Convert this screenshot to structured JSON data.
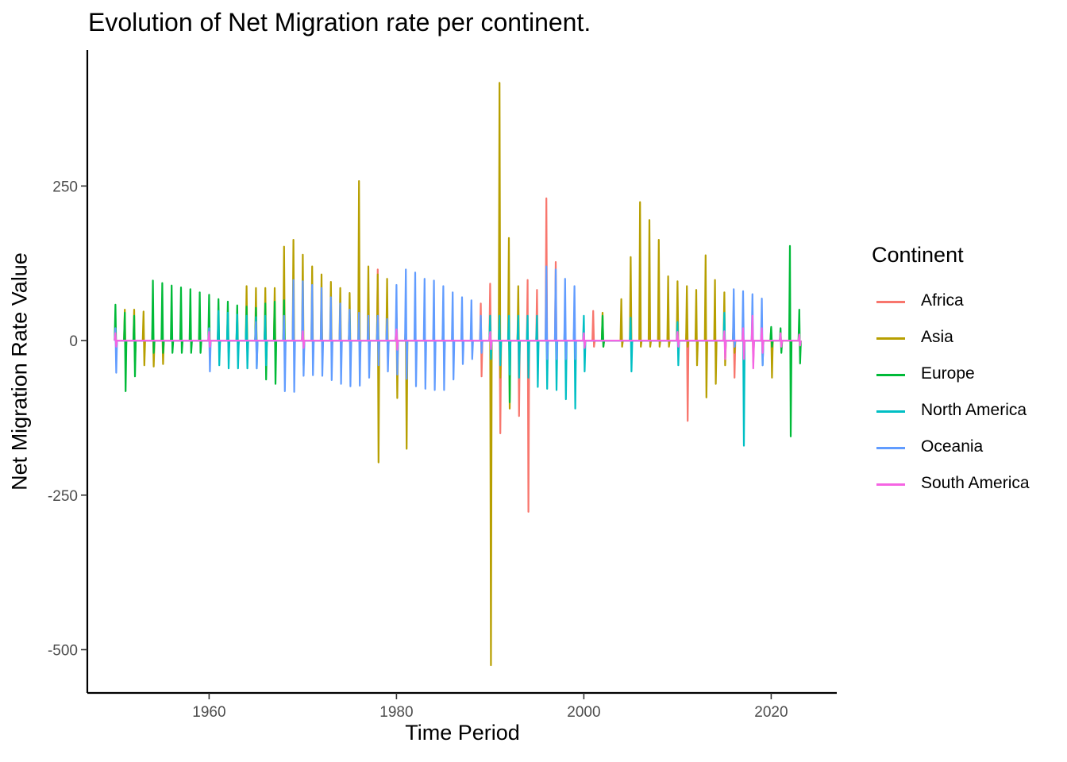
{
  "chart_data": {
    "type": "line",
    "title": "Evolution of Net Migration rate per continent.",
    "xlabel": "Time Period",
    "ylabel": "Net Migration Rate Value",
    "xlim": [
      1947,
      2027
    ],
    "ylim": [
      -570,
      470
    ],
    "x_ticks": [
      1960,
      1980,
      2000,
      2020
    ],
    "y_ticks": [
      -500,
      -250,
      0,
      250
    ],
    "grid": false,
    "legend_position": "right",
    "legend_title": "Continent",
    "series": [
      {
        "name": "Africa",
        "color": "#F8766D",
        "spikes": [
          [
            1978,
            115,
            -20
          ],
          [
            1980,
            50,
            -10
          ],
          [
            1989,
            60,
            -58
          ],
          [
            1990,
            92,
            -20
          ],
          [
            1991,
            30,
            -150
          ],
          [
            1993,
            40,
            -122
          ],
          [
            1994,
            98,
            -277
          ],
          [
            1995,
            82,
            -30
          ],
          [
            1996,
            230,
            -20
          ],
          [
            1997,
            127,
            -15
          ],
          [
            2001,
            48,
            -10
          ],
          [
            2011,
            30,
            -130
          ],
          [
            2016,
            20,
            -60
          ],
          [
            2018,
            30,
            -35
          ]
        ]
      },
      {
        "name": "Asia",
        "color": "#B79F00",
        "spikes": [
          [
            1951,
            50,
            -28
          ],
          [
            1952,
            50,
            -35
          ],
          [
            1953,
            47,
            -40
          ],
          [
            1954,
            30,
            -42
          ],
          [
            1955,
            20,
            -38
          ],
          [
            1964,
            88,
            -20
          ],
          [
            1965,
            85,
            -20
          ],
          [
            1966,
            85,
            -20
          ],
          [
            1967,
            85,
            -20
          ],
          [
            1968,
            152,
            -18
          ],
          [
            1969,
            163,
            -20
          ],
          [
            1970,
            139,
            -20
          ],
          [
            1971,
            120,
            -20
          ],
          [
            1972,
            107,
            -20
          ],
          [
            1973,
            95,
            -20
          ],
          [
            1974,
            85,
            -20
          ],
          [
            1975,
            77,
            -20
          ],
          [
            1976,
            258,
            -20
          ],
          [
            1977,
            120,
            -20
          ],
          [
            1978,
            107,
            -197
          ],
          [
            1979,
            100,
            -30
          ],
          [
            1980,
            40,
            -93
          ],
          [
            1981,
            30,
            -175
          ],
          [
            1990,
            40,
            -525
          ],
          [
            1991,
            417,
            -60
          ],
          [
            1992,
            166,
            -110
          ],
          [
            1993,
            88,
            -30
          ],
          [
            2002,
            45,
            -10
          ],
          [
            2004,
            67,
            -10
          ],
          [
            2005,
            135,
            -10
          ],
          [
            2006,
            224,
            -10
          ],
          [
            2007,
            195,
            -10
          ],
          [
            2008,
            163,
            -10
          ],
          [
            2009,
            104,
            -10
          ],
          [
            2010,
            96,
            -10
          ],
          [
            2011,
            88,
            -10
          ],
          [
            2012,
            82,
            -40
          ],
          [
            2013,
            138,
            -92
          ],
          [
            2014,
            98,
            -70
          ],
          [
            2015,
            78,
            -40
          ],
          [
            2016,
            56,
            -20
          ],
          [
            2020,
            20,
            -60
          ]
        ]
      },
      {
        "name": "Europe",
        "color": "#00BA38",
        "spikes": [
          [
            1950,
            58,
            -20
          ],
          [
            1951,
            45,
            -82
          ],
          [
            1952,
            40,
            -58
          ],
          [
            1954,
            97,
            -20
          ],
          [
            1955,
            93,
            -20
          ],
          [
            1956,
            89,
            -20
          ],
          [
            1957,
            86,
            -20
          ],
          [
            1958,
            83,
            -20
          ],
          [
            1959,
            78,
            -20
          ],
          [
            1960,
            74,
            -20
          ],
          [
            1961,
            67,
            -20
          ],
          [
            1962,
            63,
            -20
          ],
          [
            1963,
            57,
            -20
          ],
          [
            1964,
            55,
            -20
          ],
          [
            1965,
            53,
            -20
          ],
          [
            1966,
            60,
            -63
          ],
          [
            1967,
            63,
            -70
          ],
          [
            1968,
            65,
            -10
          ],
          [
            1978,
            40,
            -10
          ],
          [
            1992,
            30,
            -100
          ],
          [
            2002,
            40,
            -10
          ],
          [
            2020,
            22,
            -10
          ],
          [
            2021,
            20,
            -20
          ],
          [
            2022,
            153,
            -155
          ],
          [
            2023,
            50,
            -37
          ]
        ]
      },
      {
        "name": "North America",
        "color": "#00BFC4",
        "spikes": [
          [
            1961,
            48,
            -40
          ],
          [
            1962,
            45,
            -45
          ],
          [
            1963,
            42,
            -45
          ],
          [
            1964,
            40,
            -45
          ],
          [
            1965,
            38,
            -45
          ],
          [
            1966,
            40,
            -40
          ],
          [
            1970,
            40,
            -40
          ],
          [
            1975,
            45,
            -35
          ],
          [
            1980,
            40,
            -30
          ],
          [
            1985,
            40,
            -30
          ],
          [
            1990,
            40,
            -30
          ],
          [
            1991,
            40,
            -40
          ],
          [
            1992,
            40,
            -55
          ],
          [
            1993,
            40,
            -60
          ],
          [
            1994,
            40,
            -60
          ],
          [
            1995,
            40,
            -75
          ],
          [
            1996,
            40,
            -78
          ],
          [
            1997,
            40,
            -80
          ],
          [
            1998,
            40,
            -95
          ],
          [
            1999,
            40,
            -110
          ],
          [
            2000,
            40,
            -50
          ],
          [
            2005,
            37,
            -50
          ],
          [
            2010,
            30,
            -40
          ],
          [
            2015,
            45,
            -20
          ],
          [
            2016,
            35,
            -10
          ],
          [
            2017,
            30,
            -170
          ],
          [
            2019,
            25,
            -40
          ]
        ]
      },
      {
        "name": "Oceania",
        "color": "#619CFF",
        "spikes": [
          [
            1950,
            20,
            -52
          ],
          [
            1960,
            20,
            -50
          ],
          [
            1965,
            30,
            -45
          ],
          [
            1968,
            40,
            -82
          ],
          [
            1969,
            98,
            -83
          ],
          [
            1970,
            96,
            -57
          ],
          [
            1971,
            90,
            -56
          ],
          [
            1972,
            85,
            -57
          ],
          [
            1973,
            70,
            -64
          ],
          [
            1974,
            60,
            -70
          ],
          [
            1975,
            50,
            -74
          ],
          [
            1976,
            45,
            -73
          ],
          [
            1977,
            40,
            -60
          ],
          [
            1978,
            40,
            -40
          ],
          [
            1979,
            35,
            -50
          ],
          [
            1980,
            90,
            -55
          ],
          [
            1981,
            115,
            -62
          ],
          [
            1982,
            110,
            -74
          ],
          [
            1983,
            100,
            -78
          ],
          [
            1984,
            97,
            -80
          ],
          [
            1985,
            88,
            -80
          ],
          [
            1986,
            78,
            -63
          ],
          [
            1987,
            70,
            -38
          ],
          [
            1988,
            65,
            -30
          ],
          [
            1989,
            40,
            -20
          ],
          [
            1996,
            120,
            -30
          ],
          [
            1997,
            115,
            -30
          ],
          [
            1998,
            100,
            -30
          ],
          [
            1999,
            88,
            -30
          ],
          [
            2016,
            83,
            -10
          ],
          [
            2017,
            80,
            -20
          ],
          [
            2018,
            75,
            -30
          ],
          [
            2019,
            68,
            -40
          ]
        ]
      },
      {
        "name": "South America",
        "color": "#F564E3",
        "spikes": [
          [
            1950,
            12,
            -10
          ],
          [
            1960,
            14,
            -10
          ],
          [
            1970,
            15,
            -12
          ],
          [
            1980,
            18,
            -15
          ],
          [
            1990,
            14,
            -14
          ],
          [
            2000,
            12,
            -12
          ],
          [
            2010,
            14,
            -10
          ],
          [
            2015,
            15,
            -30
          ],
          [
            2017,
            20,
            -30
          ],
          [
            2018,
            40,
            -45
          ],
          [
            2019,
            20,
            -20
          ],
          [
            2021,
            12,
            -10
          ],
          [
            2023,
            10,
            -8
          ]
        ]
      }
    ]
  }
}
